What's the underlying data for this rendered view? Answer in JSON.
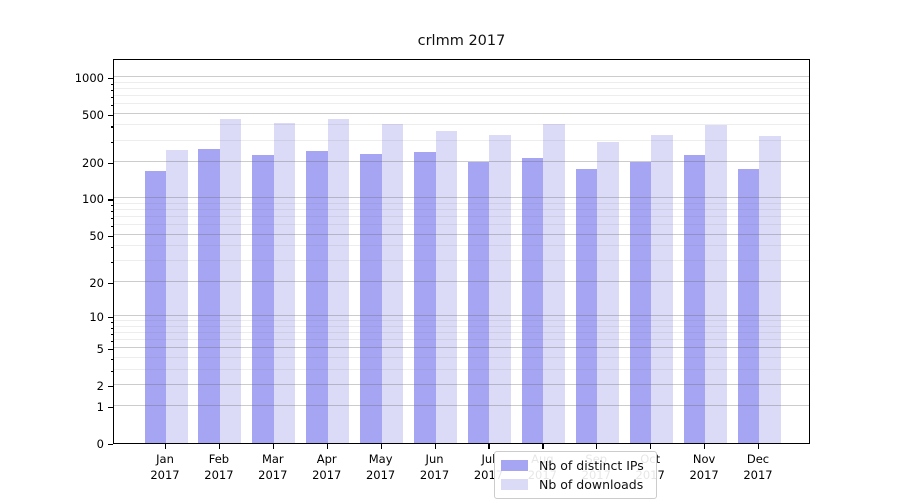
{
  "title": "crlmm 2017",
  "year_label": "2017",
  "colors": {
    "distinct_ips_bar": "#a5a5f3",
    "downloads_bar": "#dbdbf8",
    "spine": "#000000",
    "grid_major": "#d0d0d0",
    "grid_minor": "#eeeeee",
    "legend_border": "#cccccc",
    "background": "#ffffff"
  },
  "chart_data": {
    "type": "bar",
    "title": "crlmm 2017",
    "xlabel": "",
    "ylabel": "",
    "categories": [
      "Jan",
      "Feb",
      "Mar",
      "Apr",
      "May",
      "Jun",
      "Jul",
      "Aug",
      "Sep",
      "Oct",
      "Nov",
      "Dec"
    ],
    "category_year": "2017",
    "series": [
      {
        "name": "Nb of distinct IPs",
        "color": "#a5a5f3",
        "values": [
          170,
          255,
          230,
          245,
          232,
          240,
          200,
          215,
          175,
          200,
          230,
          175
        ]
      },
      {
        "name": "Nb of downloads",
        "color": "#dbdbf8",
        "values": [
          250,
          455,
          420,
          455,
          410,
          360,
          335,
          410,
          295,
          335,
          400,
          330
        ]
      }
    ],
    "yscale": "symlog-log1p",
    "y_ticks": [
      0,
      1,
      2,
      5,
      10,
      20,
      50,
      100,
      200,
      500,
      1000
    ],
    "y_minor_gridlines": [
      3,
      4,
      6,
      7,
      8,
      9,
      30,
      40,
      60,
      70,
      80,
      90,
      300,
      400,
      600,
      700,
      800,
      900
    ],
    "ylim": [
      0,
      1430
    ],
    "grid": "horizontal major and minor gridlines",
    "legend_position": "inside lower center"
  },
  "legend": {
    "items": [
      {
        "label": "Nb of distinct IPs",
        "color": "#a5a5f3"
      },
      {
        "label": "Nb of downloads",
        "color": "#dbdbf8"
      }
    ]
  }
}
